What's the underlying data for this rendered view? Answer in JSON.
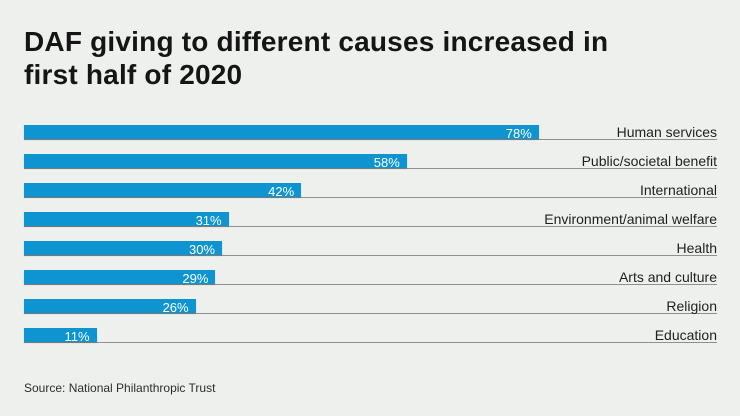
{
  "page": {
    "background_color": "#eef0ee"
  },
  "title": {
    "line1": "DAF giving to different causes increased in",
    "line2": "first half of 2020"
  },
  "source": {
    "label": "Source: National Philanthropic Trust"
  },
  "colors": {
    "bar": "#0f94d2",
    "value_label": "#ffffff",
    "baseline": "#8f9090",
    "title_text": "#151515",
    "category_text": "#1f1f1f",
    "source_text": "#2d2d2d"
  },
  "chart_data": {
    "type": "bar",
    "orientation": "horizontal",
    "title": "DAF giving to different causes increased in first half of 2020",
    "categories": [
      "Human services",
      "Public/societal benefit",
      "International",
      "Environment/animal welfare",
      "Health",
      "Arts and culture",
      "Religion",
      "Education"
    ],
    "values": [
      78,
      58,
      42,
      31,
      30,
      29,
      26,
      11
    ],
    "value_labels": [
      "78%",
      "58%",
      "42%",
      "31%",
      "30%",
      "29%",
      "26%",
      "11%"
    ],
    "xlabel": "",
    "ylabel": "",
    "xlim": [
      0,
      105
    ],
    "grid": false,
    "legend": "none",
    "value_label_position": "inside-end",
    "category_label_position": "right-aligned",
    "source": "Source: National Philanthropic Trust"
  }
}
